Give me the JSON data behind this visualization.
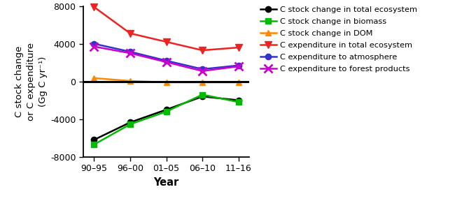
{
  "x_labels": [
    "90–95",
    "96–00",
    "01–05",
    "06–10",
    "11–16"
  ],
  "x_positions": [
    0,
    1,
    2,
    3,
    4
  ],
  "series": [
    {
      "label": "C stock change in total ecosystem",
      "values": [
        -6200,
        -4350,
        -3000,
        -1600,
        -2000
      ],
      "color": "#000000",
      "marker": "o",
      "markersize": 6,
      "linewidth": 1.8,
      "linestyle": "-"
    },
    {
      "label": "C stock change in biomass",
      "values": [
        -6700,
        -4550,
        -3200,
        -1400,
        -2200
      ],
      "color": "#00bb00",
      "marker": "s",
      "markersize": 6,
      "linewidth": 1.8,
      "linestyle": "-"
    },
    {
      "label": "C stock change in DOM",
      "values": [
        350,
        50,
        -100,
        -100,
        -100
      ],
      "color": "#ff8800",
      "marker": "^",
      "markersize": 6,
      "linewidth": 1.8,
      "linestyle": "-"
    },
    {
      "label": "C expenditure in total ecosystem",
      "values": [
        7900,
        5100,
        4200,
        3300,
        3600
      ],
      "color": "#ee2222",
      "marker": "v",
      "markersize": 7,
      "linewidth": 1.8,
      "linestyle": "-"
    },
    {
      "label": "C expenditure to atmosphere",
      "values": [
        4000,
        3150,
        2200,
        1300,
        1700
      ],
      "color": "#3333cc",
      "marker": "o",
      "markersize": 6,
      "linewidth": 1.8,
      "linestyle": "-"
    },
    {
      "label": "C expenditure to forest products",
      "values": [
        3700,
        3000,
        2050,
        1100,
        1600
      ],
      "color": "#cc00cc",
      "marker": "x",
      "markersize": 8,
      "linewidth": 1.8,
      "linestyle": "-"
    }
  ],
  "ylabel": "C stock change\nor C expenditure\n(Gg C yr⁻¹)",
  "xlabel": "Year",
  "ylim": [
    -8000,
    8000
  ],
  "yticks": [
    -8000,
    -4000,
    0,
    4000,
    8000
  ],
  "hline_y": 0,
  "hline_color": "#000000",
  "hline_linewidth": 2.2,
  "legend_fontsize": 8.2,
  "axis_fontsize": 9.5,
  "tick_fontsize": 9,
  "figure_width": 6.6,
  "figure_height": 2.88,
  "dpi": 100
}
